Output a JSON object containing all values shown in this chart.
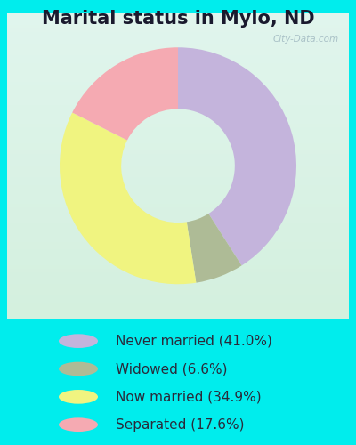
{
  "title": "Marital status in Mylo, ND",
  "slices": [
    41.0,
    6.6,
    34.9,
    17.6
  ],
  "labels": [
    "Never married (41.0%)",
    "Widowed (6.6%)",
    "Now married (34.9%)",
    "Separated (17.6%)"
  ],
  "colors": [
    "#c4b4dc",
    "#aebb96",
    "#f0f480",
    "#f5aab2"
  ],
  "legend_colors": [
    "#c4b4dc",
    "#aebb96",
    "#f0f480",
    "#f5aab2"
  ],
  "startangle": 90,
  "watermark": "City-Data.com",
  "title_fontsize": 15,
  "legend_fontsize": 11,
  "outer_bg": "#00eded",
  "chart_bg_tl": [
    0.85,
    0.95,
    0.9
  ],
  "chart_bg_tr": [
    0.92,
    0.96,
    0.95
  ],
  "chart_bg_bl": [
    0.88,
    0.95,
    0.85
  ],
  "chart_bg_br": [
    0.9,
    0.96,
    0.88
  ],
  "donut_width": 0.52
}
